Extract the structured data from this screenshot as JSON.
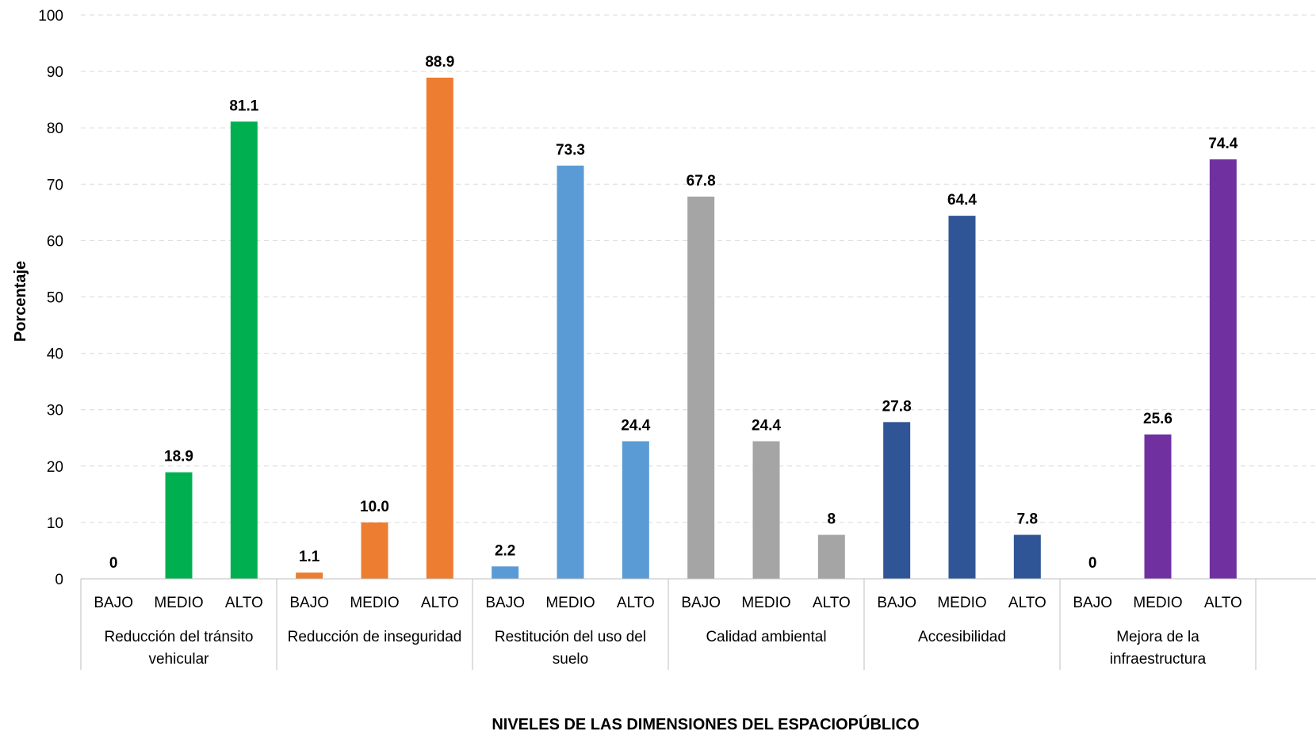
{
  "chart_data": {
    "type": "bar",
    "title": "",
    "xlabel": "NIVELES DE LAS DIMENSIONES DEL ESPACIOPÚBLICO",
    "ylabel": "Porcentaje",
    "ylim": [
      0,
      100
    ],
    "yticks": [
      0,
      10,
      20,
      30,
      40,
      50,
      60,
      70,
      80,
      90,
      100
    ],
    "grid": true,
    "legend": "none",
    "groups": [
      {
        "name": [
          "Reducción del tránsito",
          "vehicular"
        ],
        "color": "#00b050",
        "categories": [
          "BAJO",
          "MEDIO",
          "ALTO"
        ],
        "values": [
          0,
          18.9,
          81.1
        ],
        "labels": [
          "0",
          "18.9",
          "81.1"
        ]
      },
      {
        "name": [
          "Reducción de inseguridad"
        ],
        "color": "#ed7d31",
        "categories": [
          "BAJO",
          "MEDIO",
          "ALTO"
        ],
        "values": [
          1.1,
          10.0,
          88.9
        ],
        "labels": [
          "1.1",
          "10.0",
          "88.9"
        ]
      },
      {
        "name": [
          "Restitución del uso del",
          "suelo"
        ],
        "color": "#5b9bd5",
        "categories": [
          "BAJO",
          "MEDIO",
          "ALTO"
        ],
        "values": [
          2.2,
          73.3,
          24.4
        ],
        "labels": [
          "2.2",
          "73.3",
          "24.4"
        ]
      },
      {
        "name": [
          "Calidad ambiental"
        ],
        "color": "#a5a5a5",
        "categories": [
          "BAJO",
          "MEDIO",
          "ALTO"
        ],
        "values": [
          67.8,
          24.4,
          7.8
        ],
        "labels": [
          "67.8",
          "24.4",
          "8"
        ]
      },
      {
        "name": [
          "Accesibilidad"
        ],
        "color": "#2f5597",
        "categories": [
          "BAJO",
          "MEDIO",
          "ALTO"
        ],
        "values": [
          27.8,
          64.4,
          7.8
        ],
        "labels": [
          "27.8",
          "64.4",
          "7.8"
        ]
      },
      {
        "name": [
          "Mejora de la",
          "infraestructura"
        ],
        "color": "#7030a0",
        "categories": [
          "BAJO",
          "MEDIO",
          "ALTO"
        ],
        "values": [
          0,
          25.6,
          74.4
        ],
        "labels": [
          "0",
          "25.6",
          "74.4"
        ]
      }
    ]
  }
}
